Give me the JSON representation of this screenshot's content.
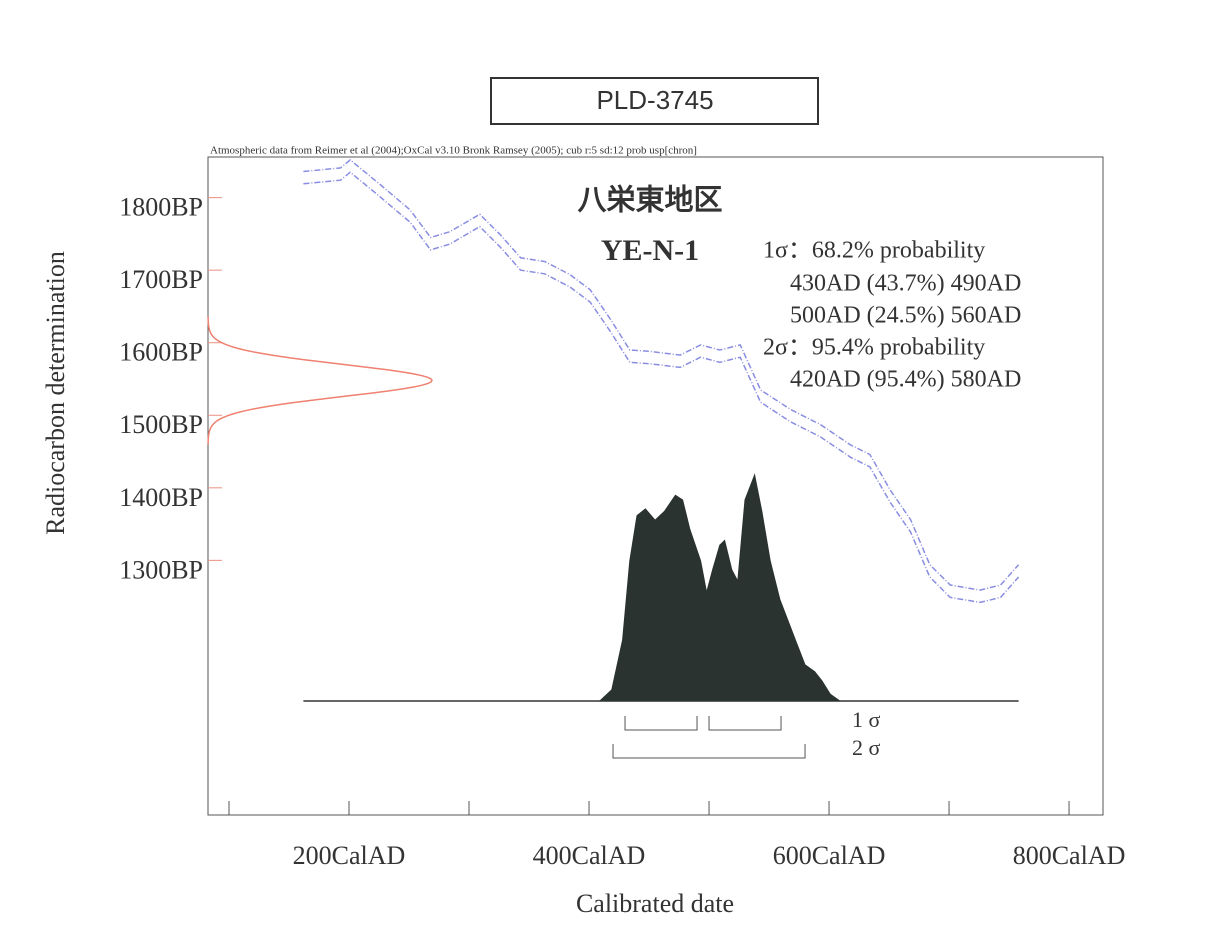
{
  "chart_data": {
    "type": "calibration",
    "title": "PLD-3745",
    "subtitle": "Atmospheric data from Reimer et al (2004);OxCal v3.10 Bronk Ramsey (2005); cub r:5 sd:12 prob usp[chron]",
    "site": "八栄東地区",
    "sample": "YE-N-1",
    "stats_lines": [
      "1σ：68.2% probability",
      "430AD (43.7%) 490AD",
      "500AD (24.5%) 560AD",
      "2σ：95.4% probability",
      "420AD (95.4%) 580AD"
    ],
    "xlabel": "Calibrated date",
    "ylabel": "Radiocarbon determination",
    "xlim": [
      82.5,
      828.3
    ],
    "ylim": [
      949,
      1856
    ],
    "xticks": [
      {
        "value": 200,
        "label": "200CalAD"
      },
      {
        "value": 400,
        "label": "400CalAD"
      },
      {
        "value": 600,
        "label": "600CalAD"
      },
      {
        "value": 800,
        "label": "800CalAD"
      }
    ],
    "xminor_ticks": [
      100,
      300,
      500,
      700
    ],
    "yticks": [
      {
        "value": 1800,
        "label": "1800BP"
      },
      {
        "value": 1700,
        "label": "1700BP"
      },
      {
        "value": 1600,
        "label": "1600BP"
      },
      {
        "value": 1500,
        "label": "1500BP"
      },
      {
        "value": 1400,
        "label": "1400BP"
      },
      {
        "value": 1300,
        "label": "1300BP"
      }
    ],
    "curve_color": "#8a8ee0",
    "curve_x": [
      162,
      193,
      201,
      226,
      251,
      268,
      284,
      309,
      326,
      343,
      363,
      384,
      401,
      418,
      434,
      451,
      476,
      493,
      509,
      526,
      543,
      568,
      593,
      618,
      634,
      651,
      668,
      684,
      701,
      726,
      743,
      758
    ],
    "series": [
      {
        "name": "upper",
        "values": [
          1836,
          1841,
          1852,
          1818,
          1783,
          1745,
          1753,
          1777,
          1749,
          1717,
          1712,
          1694,
          1673,
          1632,
          1590,
          1588,
          1583,
          1597,
          1590,
          1597,
          1535,
          1508,
          1487,
          1459,
          1446,
          1397,
          1356,
          1294,
          1266,
          1259,
          1266,
          1294
        ]
      },
      {
        "name": "lower",
        "values": [
          1819,
          1824,
          1835,
          1801,
          1766,
          1728,
          1736,
          1760,
          1732,
          1700,
          1695,
          1677,
          1656,
          1615,
          1573,
          1571,
          1566,
          1580,
          1573,
          1580,
          1518,
          1491,
          1470,
          1442,
          1429,
          1380,
          1339,
          1277,
          1249,
          1242,
          1249,
          1277
        ]
      }
    ],
    "measurement": {
      "mean": 1548,
      "error": 22,
      "color": "#f08070"
    },
    "distribution": {
      "color": "#2a3330",
      "x": [
        409,
        419,
        428,
        434,
        440,
        447,
        455,
        463,
        472,
        478,
        484,
        493,
        498,
        503,
        509,
        513,
        519,
        524,
        530,
        538,
        544,
        551,
        559,
        572,
        580,
        588,
        594,
        601,
        609
      ],
      "values": [
        0,
        0.05,
        0.27,
        0.62,
        0.82,
        0.85,
        0.8,
        0.84,
        0.91,
        0.89,
        0.76,
        0.62,
        0.48,
        0.58,
        0.69,
        0.71,
        0.58,
        0.53,
        0.89,
        1,
        0.84,
        0.62,
        0.45,
        0.27,
        0.16,
        0.13,
        0.09,
        0.03,
        0
      ],
      "baseline": [
        162,
        758
      ]
    },
    "ranges": [
      {
        "label": "1 σ",
        "intervals": [
          [
            430,
            490
          ],
          [
            500,
            560
          ]
        ]
      },
      {
        "label": "2 σ",
        "intervals": [
          [
            420,
            580
          ]
        ]
      }
    ]
  }
}
